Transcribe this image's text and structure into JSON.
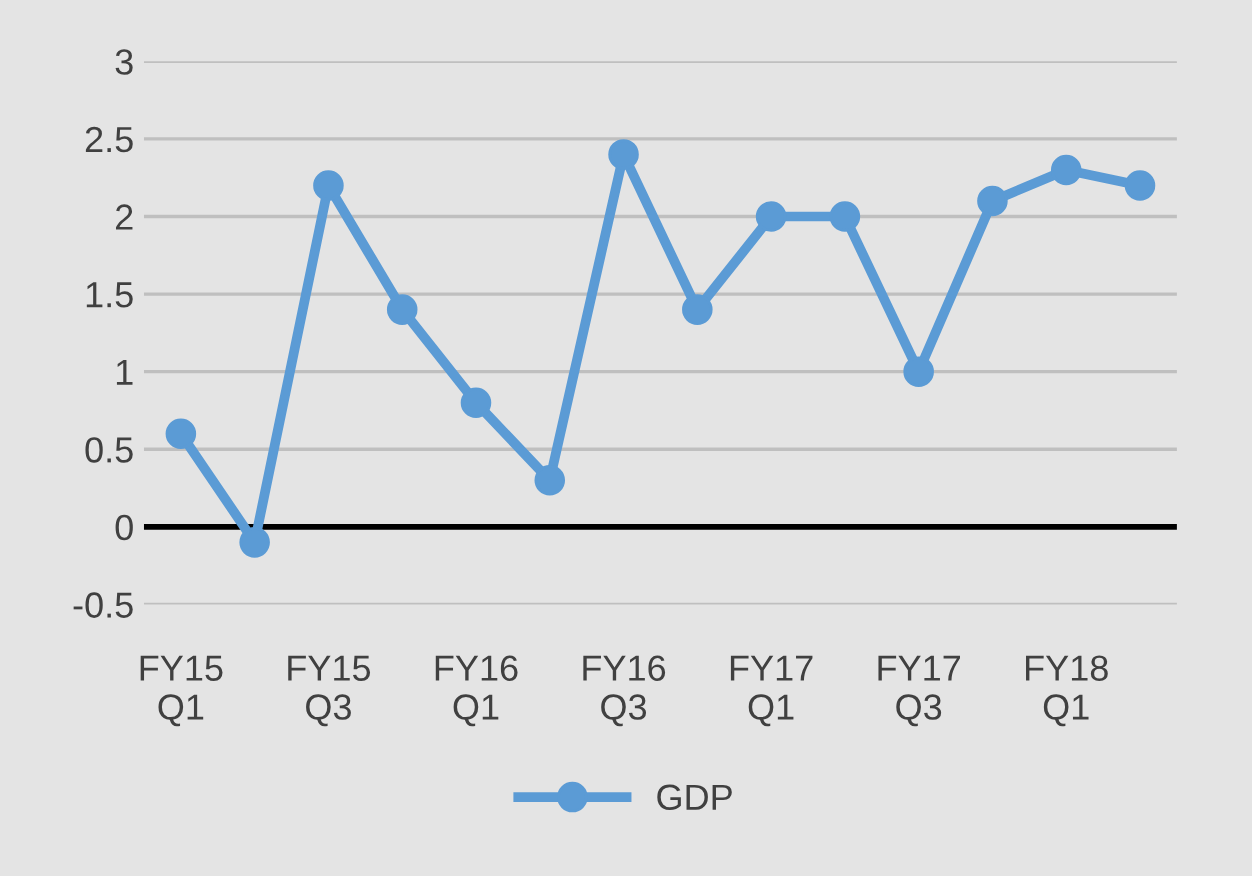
{
  "chart_data": {
    "type": "line",
    "categories": [
      "FY15\nQ1",
      null,
      "FY15\nQ3",
      null,
      "FY16\nQ1",
      null,
      "FY16\nQ3",
      null,
      "FY17\nQ1",
      null,
      "FY17\nQ3",
      null,
      "FY18\nQ1",
      null
    ],
    "series": [
      {
        "name": "GDP",
        "color": "#5b9bd5",
        "values": [
          0.6,
          -0.1,
          2.2,
          1.4,
          0.8,
          0.3,
          2.4,
          1.4,
          2.0,
          2.0,
          1.0,
          2.1,
          2.3,
          2.2
        ]
      }
    ],
    "ylim": [
      -0.5,
      3
    ],
    "yticks": [
      -0.5,
      0,
      0.5,
      1,
      1.5,
      2,
      2.5,
      3
    ],
    "ref_lines": [
      {
        "axis": "y",
        "value": 0,
        "color": "#000000"
      }
    ],
    "grid": "y",
    "legend": "bottom",
    "marker": "circle",
    "line_style": "solid"
  }
}
